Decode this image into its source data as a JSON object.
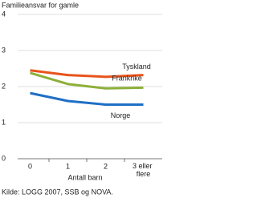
{
  "chart_data": {
    "type": "line",
    "title": "Familieansvar for gamle",
    "x_label": "Antall barn",
    "source": "Kilde: LOGG 2007, SSB og NOVA.",
    "categories": [
      "0",
      "1",
      "2",
      "3 eller flere"
    ],
    "series": [
      {
        "name": "Tyskland",
        "color": "#e8541c",
        "values": [
          2.45,
          2.32,
          2.27,
          2.32
        ]
      },
      {
        "name": "Frankrike",
        "color": "#8db03a",
        "values": [
          2.38,
          2.07,
          1.95,
          1.97
        ]
      },
      {
        "name": "Norge",
        "color": "#1f6fc5",
        "values": [
          1.82,
          1.6,
          1.5,
          1.5
        ]
      }
    ],
    "ylim": [
      0,
      4
    ],
    "yticks": [
      0,
      1,
      2,
      3,
      4
    ],
    "grid": true
  }
}
